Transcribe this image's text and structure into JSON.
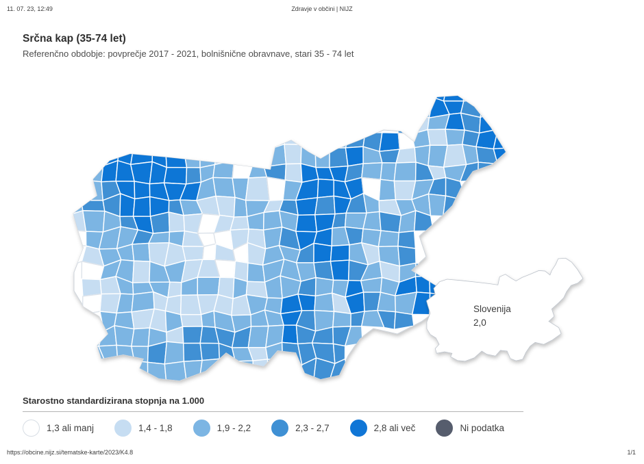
{
  "page": {
    "header": {
      "datetime": "11. 07. 23, 12:49",
      "site_title": "Zdravje v občini | NIJZ"
    },
    "title": "Srčna kap (35-74 let)",
    "subtitle": "Referenčno obdobje: povprečje 2017 - 2021, bolnišnične obravnave, stari 35 - 74 let",
    "footer": {
      "url": "https://obcine.nijz.si/tematske-karte/2023/K4.8",
      "page_number": "1/1"
    }
  },
  "legend": {
    "title": "Starostno standardizirana stopnja na 1.000",
    "items": [
      {
        "label": "1,3 ali manj",
        "color": "#ffffff",
        "border": "#d7dde4"
      },
      {
        "label": "1,4 - 1,8",
        "color": "#c6ddf2",
        "border": "#c6ddf2"
      },
      {
        "label": "1,9 - 2,2",
        "color": "#7cb5e3",
        "border": "#7cb5e3"
      },
      {
        "label": "2,3 - 2,7",
        "color": "#3f90d4",
        "border": "#3f90d4"
      },
      {
        "label": "2,8 ali več",
        "color": "#1076d6",
        "border": "#1076d6"
      },
      {
        "label": "Ni podatka",
        "color": "#565d6d",
        "border": "#565d6d"
      }
    ]
  },
  "map": {
    "measure": "Starostno standardizirana stopnja na 1.000",
    "inset_label": "Slovenija",
    "inset_value": "2,0",
    "class_colors": [
      "#ffffff",
      "#c6ddf2",
      "#7cb5e3",
      "#3f90d4",
      "#1076d6",
      "#565d6d"
    ],
    "class_labels": [
      "1,3 ali manj",
      "1,4 - 1,8",
      "1,9 - 2,2",
      "2,3 - 2,7",
      "2,8 ali več",
      "Ni podatka"
    ],
    "grid_rows": [
      "......................443..",
      ".....................24433.",
      "....................312434.",
      "............21..23340212344",
      ".34444422102212234231221234",
      "22444443220231444322231233.",
      "223444442221024444021233...",
      "233444321122134343212223...",
      "1223431101122244322323.....",
      "022232210011234423223......",
      "012221110101223442123......",
      ".022122110122223432123.....",
      ".1122212212122322422444....",
      ".0122111111224421432244....",
      ".02211212222243223233......",
      ".22222133332243332.........",
      ".2222323332123333..........",
      ".3322222222123333.........."
    ]
  }
}
